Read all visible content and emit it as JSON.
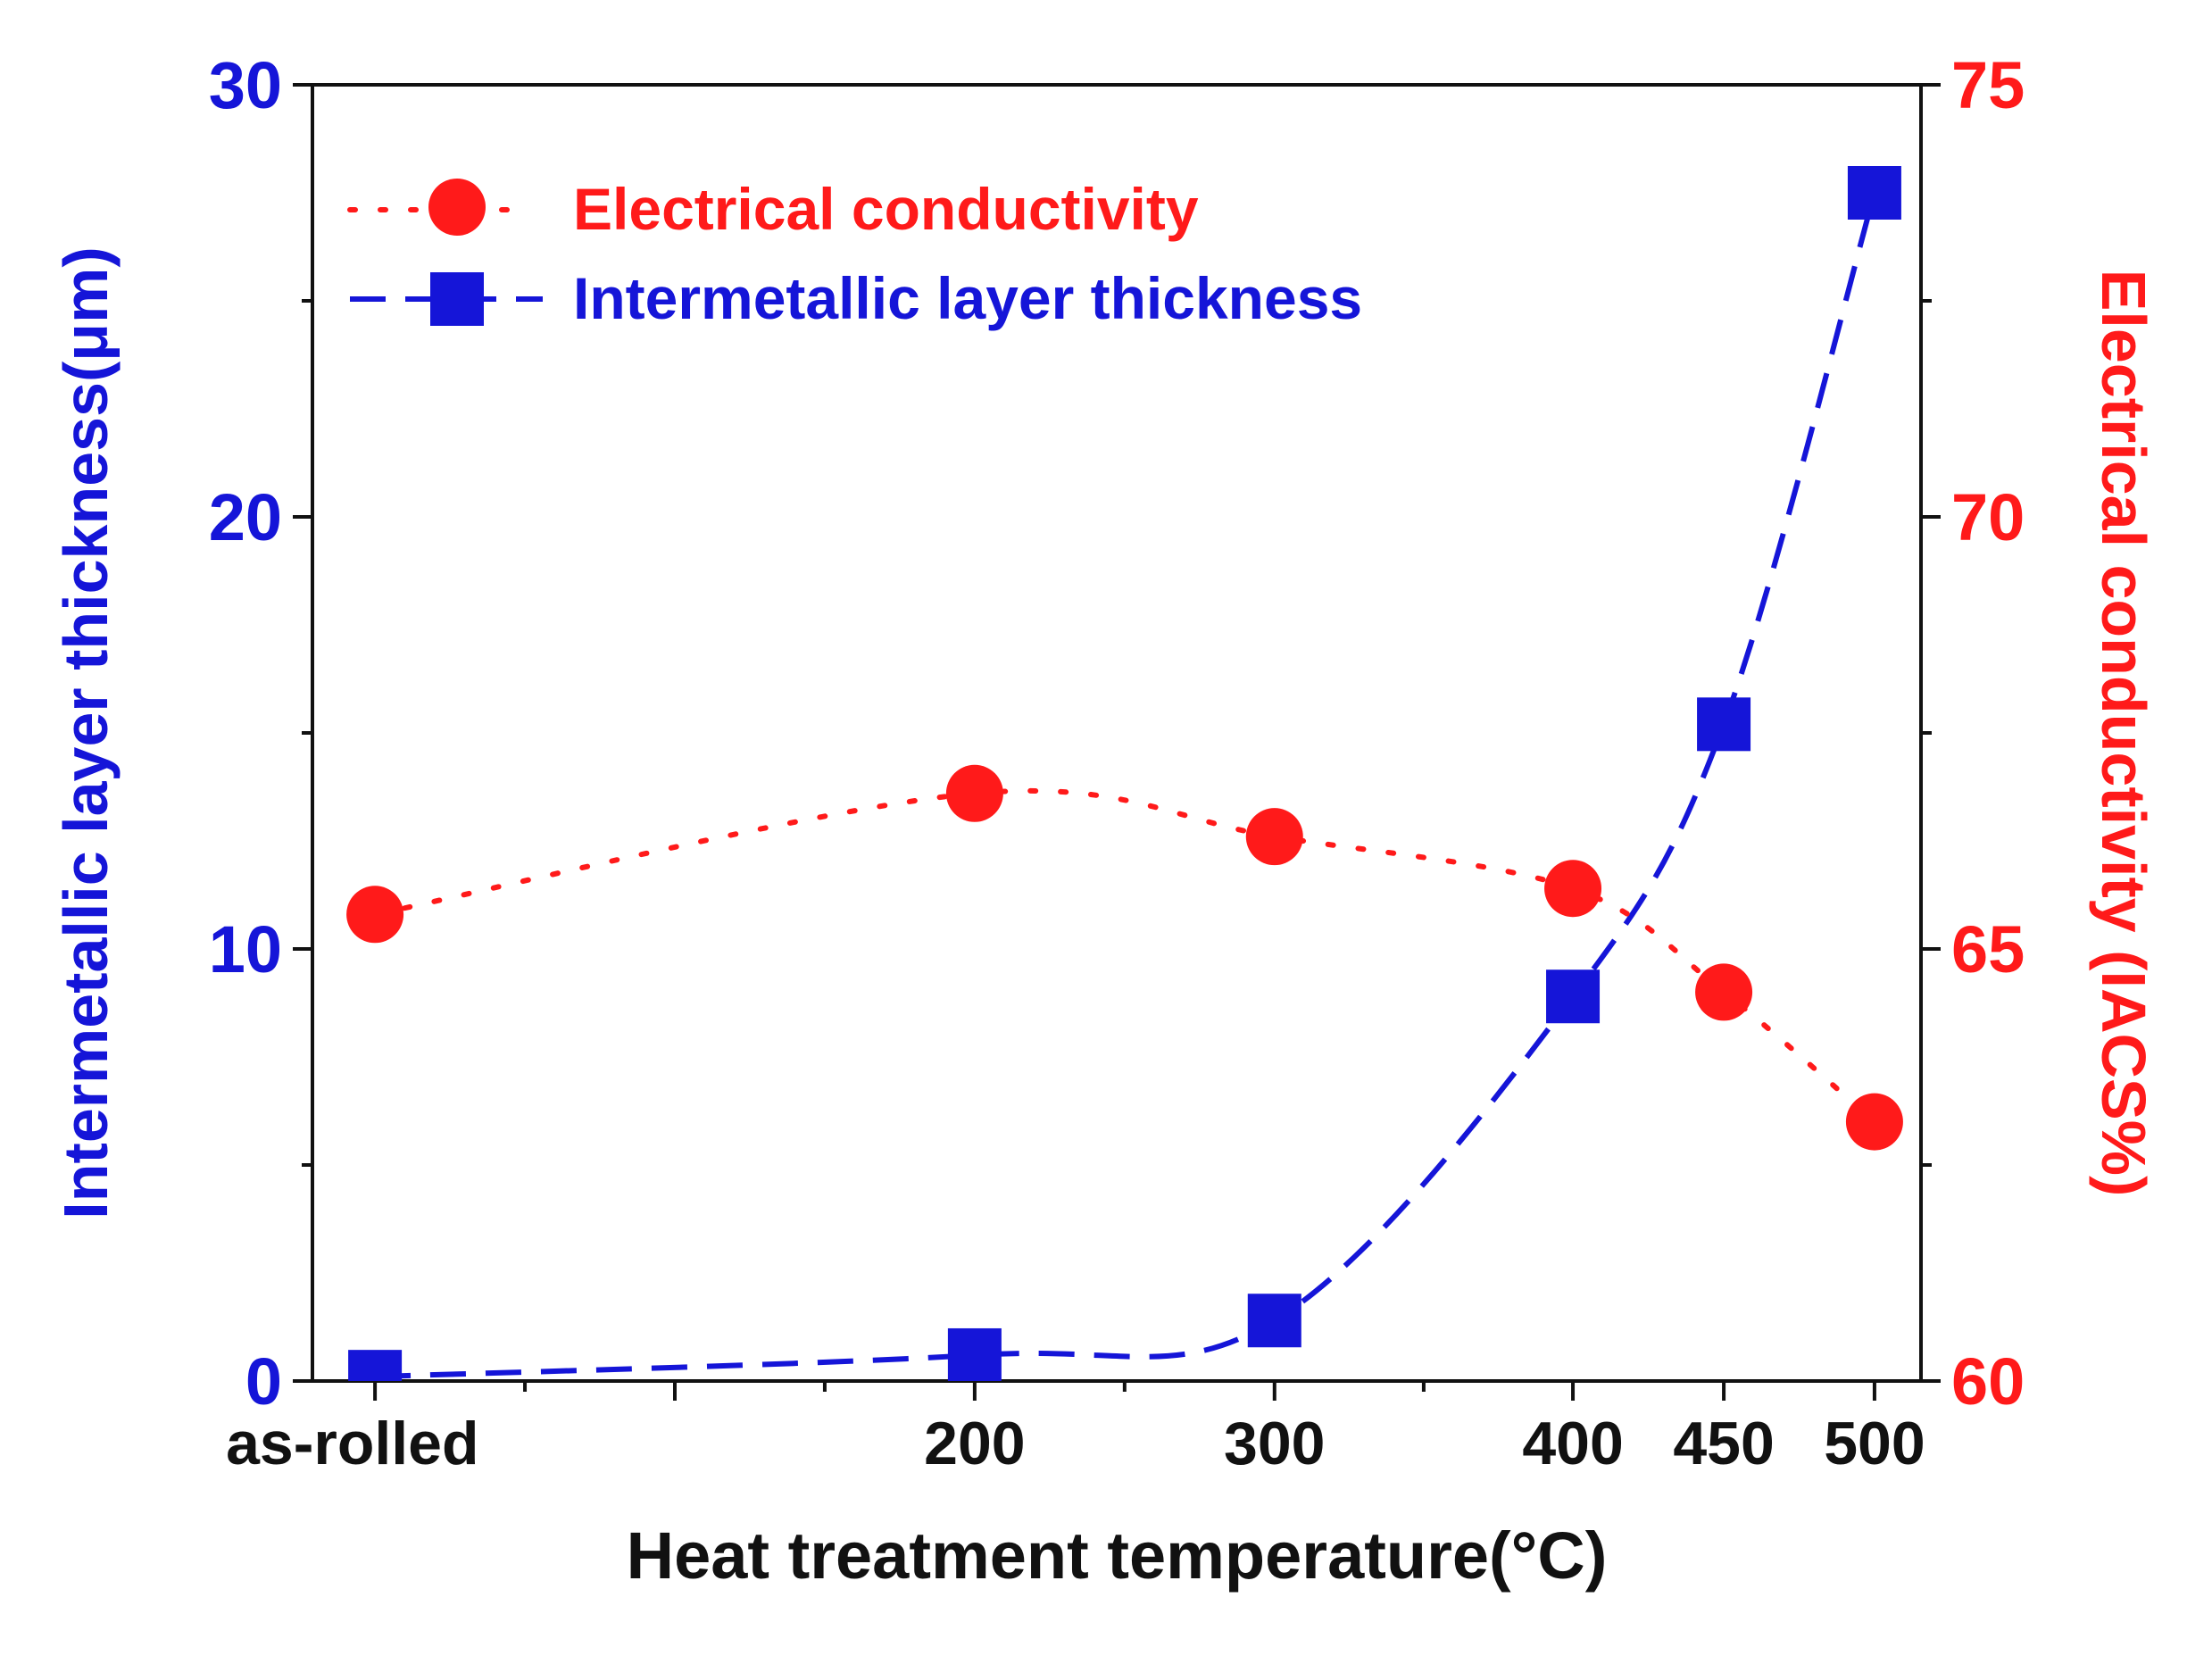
{
  "chart_data": {
    "type": "line",
    "title": "",
    "xlabel": "Heat treatment temperature(°C)",
    "ylabel_left": "Intermetallic layer thickness(μm)",
    "ylabel_right": "Electrical conductivity (IACS%)",
    "x_categories": [
      "as-rolled",
      "200",
      "300",
      "400",
      "450",
      "500"
    ],
    "x": [
      0,
      200,
      300,
      400,
      450,
      500
    ],
    "xlim": [
      0,
      500
    ],
    "ylim_left": [
      0,
      30
    ],
    "ylim_right": [
      60,
      75
    ],
    "yticks_left": [
      "0",
      "10",
      "20",
      "30"
    ],
    "yticks_right": [
      "60",
      "65",
      "70",
      "75"
    ],
    "legend_position": "top-left",
    "series": [
      {
        "name": "Electrical conductivity",
        "axis": "right",
        "marker": "circle",
        "line_style": "dotted",
        "color": "#ff1a1a",
        "values": [
          65.4,
          66.8,
          66.3,
          65.7,
          64.5,
          63.0
        ]
      },
      {
        "name": "Intermetallic layer thickness",
        "axis": "left",
        "marker": "square",
        "line_style": "dashed",
        "color": "#1515d8",
        "values": [
          0.1,
          0.6,
          1.4,
          8.9,
          15.2,
          27.5
        ]
      }
    ]
  }
}
